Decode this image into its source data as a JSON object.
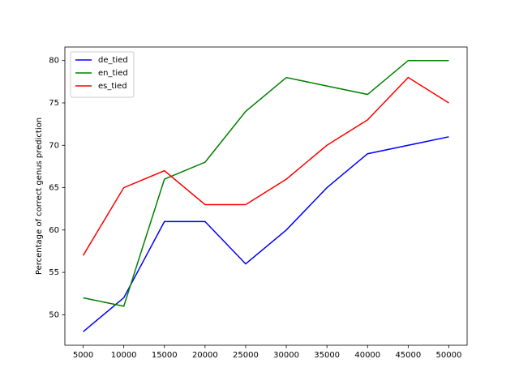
{
  "chart_data": {
    "type": "line",
    "ylabel": "Percentage of correct genus prediction",
    "x": [
      5000,
      10000,
      15000,
      20000,
      25000,
      30000,
      35000,
      40000,
      45000,
      50000
    ],
    "series": [
      {
        "name": "de_tied",
        "color": "#0000ff",
        "values": [
          48,
          52,
          61,
          61,
          56,
          60,
          65,
          69,
          70,
          71
        ]
      },
      {
        "name": "en_tied",
        "color": "#008000",
        "values": [
          52,
          51,
          66,
          68,
          74,
          78,
          77,
          76,
          80,
          80
        ]
      },
      {
        "name": "es_tied",
        "color": "#ff0000",
        "values": [
          57,
          65,
          67,
          63,
          63,
          66,
          70,
          73,
          78,
          75
        ]
      }
    ],
    "xlim": [
      2750,
      52250
    ],
    "ylim": [
      46.4,
      81.6
    ],
    "xticks": [
      5000,
      10000,
      15000,
      20000,
      25000,
      30000,
      35000,
      40000,
      45000,
      50000
    ],
    "yticks": [
      50,
      55,
      60,
      65,
      70,
      75,
      80
    ],
    "legend": "upper left"
  }
}
